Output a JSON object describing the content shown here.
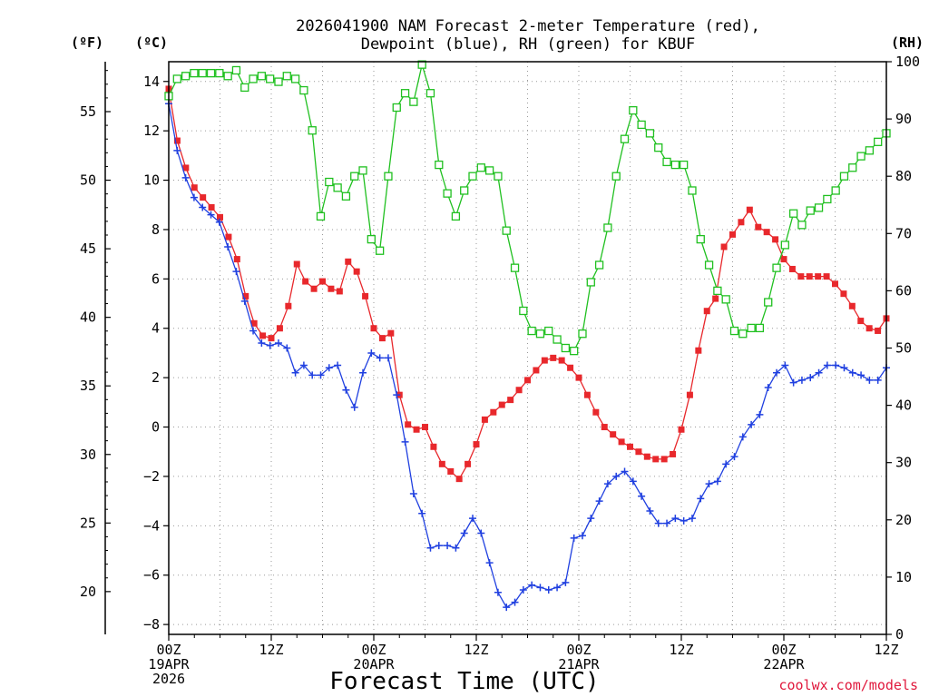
{
  "chart_data": {
    "type": "line",
    "title": [
      "2026041900 NAM Forecast 2-meter Temperature (red),",
      "Dewpoint (blue), RH (green) for KBUF"
    ],
    "xlabel": "Forecast Time (UTC)",
    "credit": "coolwx.com/models",
    "y_units": {
      "fahrenheit": "(ºF)",
      "celsius": "(ºC)",
      "rh": "(RH)"
    },
    "x_hours_range": [
      0,
      84
    ],
    "x_ticks": [
      {
        "hour": 0,
        "labels": [
          "00Z",
          "19APR",
          "2026"
        ]
      },
      {
        "hour": 12,
        "labels": [
          "12Z"
        ]
      },
      {
        "hour": 24,
        "labels": [
          "00Z",
          "20APR"
        ]
      },
      {
        "hour": 36,
        "labels": [
          "12Z"
        ]
      },
      {
        "hour": 48,
        "labels": [
          "00Z",
          "21APR"
        ]
      },
      {
        "hour": 60,
        "labels": [
          "12Z"
        ]
      },
      {
        "hour": 72,
        "labels": [
          "00Z",
          "22APR"
        ]
      },
      {
        "hour": 84,
        "labels": [
          "12Z"
        ]
      }
    ],
    "y_celsius_range": [
      -8.4,
      14.8
    ],
    "y_celsius_ticks": [
      -8,
      -6,
      -4,
      -2,
      0,
      2,
      4,
      6,
      8,
      10,
      12,
      14
    ],
    "y_fahrenheit_ticks": [
      20,
      25,
      30,
      35,
      40,
      45,
      50,
      55
    ],
    "y_rh_range": [
      0,
      100
    ],
    "y_rh_ticks": [
      0,
      10,
      20,
      30,
      40,
      50,
      60,
      70,
      80,
      90,
      100
    ],
    "grid": true,
    "series": [
      {
        "name": "Temperature",
        "units": "C",
        "color": "#e8282c",
        "marker": "filled-square",
        "values": [
          13.7,
          11.6,
          10.5,
          9.7,
          9.3,
          8.9,
          8.5,
          7.7,
          6.8,
          5.3,
          4.2,
          3.7,
          3.6,
          4.0,
          4.9,
          6.6,
          5.9,
          5.6,
          5.9,
          5.6,
          5.5,
          6.7,
          6.3,
          5.3,
          4.0,
          3.6,
          3.8,
          1.3,
          0.1,
          -0.1,
          0.0,
          -0.8,
          -1.5,
          -1.8,
          -2.1,
          -1.5,
          -0.7,
          0.3,
          0.6,
          0.9,
          1.1,
          1.5,
          1.9,
          2.3,
          2.7,
          2.8,
          2.7,
          2.4,
          2.0,
          1.3,
          0.6,
          0.0,
          -0.3,
          -0.6,
          -0.8,
          -1.0,
          -1.2,
          -1.3,
          -1.3,
          -1.1,
          -0.1,
          1.3,
          3.1,
          4.7,
          5.2,
          7.3,
          7.8,
          8.3,
          8.8,
          8.1,
          7.9,
          7.6,
          6.8,
          6.4,
          6.1,
          6.1,
          6.1,
          6.1,
          5.8,
          5.4,
          4.9,
          4.3,
          4.0,
          3.9,
          4.4
        ]
      },
      {
        "name": "Dewpoint",
        "units": "C",
        "color": "#2040e0",
        "marker": "plus",
        "values": [
          13.1,
          11.2,
          10.1,
          9.3,
          8.9,
          8.6,
          8.3,
          7.3,
          6.3,
          5.1,
          3.9,
          3.4,
          3.3,
          3.4,
          3.2,
          2.2,
          2.5,
          2.1,
          2.1,
          2.4,
          2.5,
          1.5,
          0.8,
          2.2,
          3.0,
          2.8,
          2.8,
          1.3,
          -0.6,
          -2.7,
          -3.5,
          -4.9,
          -4.8,
          -4.8,
          -4.9,
          -4.3,
          -3.7,
          -4.3,
          -5.5,
          -6.7,
          -7.3,
          -7.1,
          -6.6,
          -6.4,
          -6.5,
          -6.6,
          -6.5,
          -6.3,
          -4.5,
          -4.4,
          -3.7,
          -3.0,
          -2.3,
          -2.0,
          -1.8,
          -2.2,
          -2.8,
          -3.4,
          -3.9,
          -3.9,
          -3.7,
          -3.8,
          -3.7,
          -2.9,
          -2.3,
          -2.2,
          -1.5,
          -1.2,
          -0.4,
          0.1,
          0.5,
          1.6,
          2.2,
          2.5,
          1.8,
          1.9,
          2.0,
          2.2,
          2.5,
          2.5,
          2.4,
          2.2,
          2.1,
          1.9,
          1.9,
          2.4
        ]
      },
      {
        "name": "RH",
        "units": "%",
        "color": "#20c020",
        "marker": "open-square",
        "values": [
          94,
          97,
          97.5,
          98,
          98,
          98,
          98,
          97.5,
          98.5,
          95.5,
          97,
          97.5,
          97,
          96.5,
          97.5,
          97,
          95,
          88,
          73,
          79,
          78,
          76.5,
          80,
          81,
          69,
          67,
          80,
          92,
          94.5,
          93,
          99.5,
          94.5,
          82,
          77,
          73,
          77.5,
          80,
          81.5,
          81,
          80,
          70.5,
          64,
          56.5,
          53,
          52.5,
          53,
          51.5,
          50,
          49.5,
          52.5,
          61.5,
          64.5,
          71,
          80,
          86.5,
          91.5,
          89,
          87.5,
          85,
          82.5,
          82,
          82,
          77.5,
          69,
          64.5,
          60,
          58.5,
          53,
          52.5,
          53.5,
          53.5,
          58,
          64,
          68,
          73.5,
          71.5,
          74,
          74.5,
          76,
          77.5,
          80,
          81.5,
          83.5,
          84.5,
          86,
          87.5
        ]
      }
    ]
  }
}
